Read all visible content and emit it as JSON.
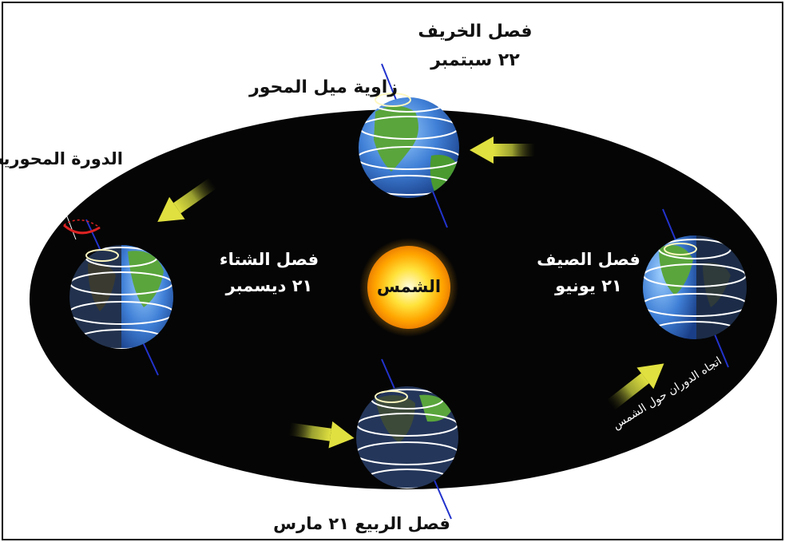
{
  "labels": {
    "autumn_name": "فصل الخريف",
    "autumn_date": "٢٢ سبتمبر",
    "axis_tilt": "زاوية ميل المحور",
    "axial_rotation": "الدورة المحورية",
    "winter_name": "فصل الشتاء",
    "winter_date": "٢١ ديسمبر",
    "sun": "الشمس",
    "summer_name": "فصل الصيف",
    "summer_date": "٢١ يونيو",
    "orbit_direction": "اتجاه الدوران حول الشمس",
    "spring": "فصل الربيع ٢١ مارس"
  },
  "colors": {
    "orbit_fill": "#050505",
    "arrow": "#c8c832",
    "ocean": "#3f7fd6",
    "land": "#5aa53c",
    "axis": "#2233cc",
    "rotation_ring": "#dd2222",
    "sun": "#ffc21a"
  },
  "icons": [
    "sun-icon",
    "earth-globe-icon",
    "orbit-arrow-icon",
    "rotation-ring-icon"
  ]
}
